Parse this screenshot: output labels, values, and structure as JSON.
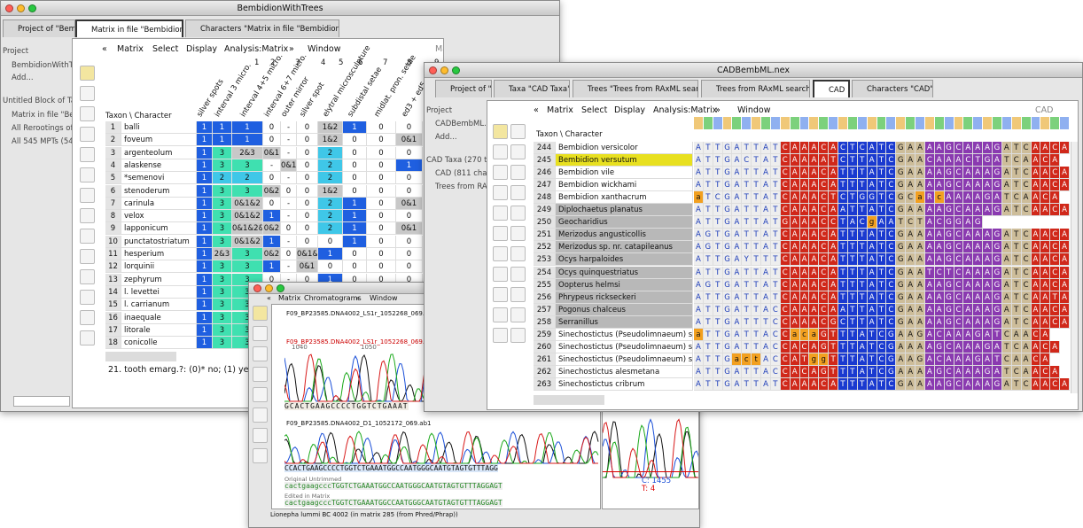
{
  "window1": {
    "title": "BembidionWithTrees",
    "tabs": [
      "Project of \"Bemb",
      "Matrix in file \"Bembidion\"",
      "Characters \"Matrix in file \"Bembidion\""
    ],
    "sidebar": [
      "Project",
      "BembidionWithTr",
      "Add...",
      "Untitled Block of Tax",
      "Matrix in file \"Be",
      "All Rerootings of",
      "All 545 MPTs (54"
    ],
    "menu": [
      "«",
      "Matrix",
      "Select",
      "Display",
      "Analysis:Matrix",
      "»",
      "Window"
    ],
    "menu_title": "Matrix in file \"Bembidion\"",
    "column_numbers": [
      "1",
      "2",
      "3",
      "4",
      "5",
      "6",
      "7",
      "8",
      "9"
    ],
    "character_names": [
      "silver spots",
      "interval 3 micro.",
      "interval 4+5 micro.",
      "interval 6+7 micro.",
      "outer mirror",
      "silver spot",
      "elytral microsculpture",
      "subdistal setae",
      "midlat. pron. setae",
      "ed3 + ed5"
    ],
    "corner": "Taxon \\ Character",
    "rows": [
      {
        "num": "1",
        "taxon": "balli",
        "cells": [
          "1",
          "1",
          "1",
          "0",
          "-",
          "0",
          "1&2",
          "1",
          "0",
          "0"
        ]
      },
      {
        "num": "2",
        "taxon": "foveum",
        "cells": [
          "1",
          "1",
          "1",
          "0",
          "-",
          "0",
          "1&2",
          "0",
          "0",
          "0&1"
        ]
      },
      {
        "num": "3",
        "taxon": "argenteolum",
        "cells": [
          "1",
          "3",
          "2&3",
          "0&1",
          "-",
          "0",
          "2",
          "0",
          "0",
          "0"
        ]
      },
      {
        "num": "4",
        "taxon": "alaskense",
        "cells": [
          "1",
          "3",
          "3",
          "-",
          "0&1",
          "0",
          "2",
          "0",
          "0",
          "1"
        ]
      },
      {
        "num": "5",
        "taxon": "*semenovi",
        "cells": [
          "1",
          "2",
          "2",
          "0",
          "-",
          "0",
          "2",
          "0",
          "0",
          "0"
        ]
      },
      {
        "num": "6",
        "taxon": "stenoderum",
        "cells": [
          "1",
          "3",
          "3",
          "0&2",
          "0",
          "0",
          "1&2",
          "0",
          "0",
          "0"
        ]
      },
      {
        "num": "7",
        "taxon": "carinula",
        "cells": [
          "1",
          "3",
          "0&1&2",
          "0",
          "-",
          "0",
          "2",
          "1",
          "0",
          "0&1"
        ]
      },
      {
        "num": "8",
        "taxon": "velox",
        "cells": [
          "1",
          "3",
          "0&1&2",
          "1",
          "-",
          "0",
          "2",
          "1",
          "0",
          "0"
        ]
      },
      {
        "num": "9",
        "taxon": "lapponicum",
        "cells": [
          "1",
          "3",
          "0&1&2&3",
          "0&2",
          "0",
          "0",
          "2",
          "1",
          "0",
          "0&1"
        ]
      },
      {
        "num": "10",
        "taxon": "punctatostriatum",
        "cells": [
          "1",
          "3",
          "0&1&2",
          "1",
          "-",
          "0",
          "0",
          "1",
          "0",
          "0"
        ]
      },
      {
        "num": "11",
        "taxon": "hesperium",
        "cells": [
          "1",
          "2&3",
          "3",
          "0&2",
          "0",
          "0&1&2",
          "1",
          "0",
          "0",
          "0"
        ]
      },
      {
        "num": "12",
        "taxon": "lorquinii",
        "cells": [
          "1",
          "3",
          "3",
          "1",
          "-",
          "0&1",
          "0",
          "0",
          "0",
          "0"
        ]
      },
      {
        "num": "13",
        "taxon": "zephyrum",
        "cells": [
          "1",
          "3",
          "3",
          "0",
          "-",
          "0",
          "1",
          "0",
          "0",
          "0"
        ]
      },
      {
        "num": "14",
        "taxon": "l. levettei",
        "cells": [
          "1",
          "3",
          "3"
        ]
      },
      {
        "num": "15",
        "taxon": "l. carrianum",
        "cells": [
          "1",
          "3",
          "3"
        ]
      },
      {
        "num": "16",
        "taxon": "inaequale",
        "cells": [
          "1",
          "3",
          "3"
        ]
      },
      {
        "num": "17",
        "taxon": "litorale",
        "cells": [
          "1",
          "3",
          "3"
        ]
      },
      {
        "num": "18",
        "taxon": "conicolle",
        "cells": [
          "1",
          "3",
          "3"
        ]
      }
    ],
    "footer": "21. tooth emarg.?: (0)* no; (1) yes;"
  },
  "window2": {
    "title": "Chromatograms",
    "menu": [
      "«",
      "Matrix",
      "Chromatograms",
      "»",
      "Window"
    ],
    "file1": "F09_BP23585.DNA4002_LS1r_1052268_069.ab1",
    "ruler": [
      "1040",
      "1050",
      "1060"
    ],
    "file2": "F09_BP23585.DNA4002_LS1r_1052268_069.ab1",
    "seq1": "GCACTGAAGCCCCTGGTCTGAAAT",
    "file3": "F09_BP23585.DNA4002_D1_1052172_069.ab1",
    "seq2": "CCACTGAAGCCCCTGGTCTGAAATGGCCAATGGGCAATGTAGTGTTTAGG",
    "original_label": "Original Untrimmed",
    "original_seq": "cactgaagcccTGGTCTGAAATGGCCAATGGGCAATGTAGTGTTTAGGAGT",
    "edited_label": "Edited in Matrix",
    "edited_seq": "cactgaagcccTGGTCTGAAATGGCCAATGGGCAATGTAGTGTTTAGGAGT",
    "peak_c": "C: 1455",
    "peak_t": "T: 4",
    "status": "Lionepha lummi BC 4002 (in matrix 285 (from Phred/Phrap))"
  },
  "window3": {
    "title": "CADBembML.nex",
    "tabs": [
      "Project of \"CA",
      "Taxa \"CAD Taxa\"",
      "Trees \"Trees from RAxML search\"",
      "Trees from RAxML search",
      "CAD",
      "Characters \"CAD\""
    ],
    "sidebar": [
      "Project",
      "CADBembML.ne",
      "Add...",
      "CAD Taxa (270 tax",
      "CAD (811 chara",
      "Trees from RAx"
    ],
    "menu": [
      "«",
      "Matrix",
      "Select",
      "Display",
      "Analysis:Matrix",
      "»",
      "Window"
    ],
    "menu_title": "CAD",
    "corner": "Taxon \\ Character",
    "rows": [
      {
        "num": "244",
        "taxon": "Bembidion versicolor",
        "seq": "ATTGATTATCAAACACTCATCGAAAAGCAAAGATCAACA"
      },
      {
        "num": "245",
        "taxon": "Bembidion versutum",
        "seq": "ATTGACTATCAAAATCTTATCGAACAAACTGATCAACA"
      },
      {
        "num": "246",
        "taxon": "Bembidion vile",
        "seq": "ATTGATTATCAAACATTTATCGAAAAGCAAAGATCAACA"
      },
      {
        "num": "247",
        "taxon": "Bembidion wickhami",
        "seq": "ATTGATTATCAAACATTTATCGAAAAGCAAAGATCAACA"
      },
      {
        "num": "248",
        "taxon": "Bembidion xanthacrum",
        "seq": "aTCGATTATCAAACTCTGGTCGCaRcAAAAGATCAACA"
      },
      {
        "num": "249",
        "taxon": "Diplochaetus planatus",
        "seq": "ATTGATTATCAAACAATTATCGAAAAGCAAAGATCAACA"
      },
      {
        "num": "250",
        "taxon": "Geocharidius",
        "seq": "ATTGATTATGAAACCTACgAATCTACGGAG"
      },
      {
        "num": "251",
        "taxon": "Merizodus angusticollis",
        "seq": "AGTGATTATCAAACATTTATCGAAAAGCAAAGATCAACA"
      },
      {
        "num": "252",
        "taxon": "Merizodus sp. nr. catapileanus",
        "seq": "AGTGATTATCAAACATTTATCGAAAAGCAAAGATCAACA"
      },
      {
        "num": "253",
        "taxon": "Ocys harpaloides",
        "seq": "ATTGAYTTTCAAACATTTATCGAAAAGCAAAGATCAACA"
      },
      {
        "num": "254",
        "taxon": "Ocys quinquestriatus",
        "seq": "ATTGATTATCAAACATTTATCGAATCTCAAAGATCAACA"
      },
      {
        "num": "255",
        "taxon": "Oopterus helmsi",
        "seq": "AGTGATTATCAAACATTTATCGAAAAGCAAAGATCAACA"
      },
      {
        "num": "256",
        "taxon": "Phrypeus rickseckeri",
        "seq": "ATTGATTATCAAACATTTATCGAAAAGCAAAGATCAATA"
      },
      {
        "num": "257",
        "taxon": "Pogonus chalceus",
        "seq": "ATTGATTACCAAACAATTATCGAAAAGCAAAGATCAACA"
      },
      {
        "num": "258",
        "taxon": "Serranillus",
        "seq": "ATTGATTTCCAAACGCTTATCGAAAAGCAAAGATCAACA"
      },
      {
        "num": "259",
        "taxon": "Sinechostictus (Pseudolimnaeum) sp. 2",
        "seq": "aTTGATTACCacaGTTTATCGAAGACAAAGATCAACA"
      },
      {
        "num": "260",
        "taxon": "Sinechostictus (Pseudolimnaeum) sp. 3",
        "seq": "ATTGATTACCACAGTTTATCGAAAAGCAAAGATCAACA"
      },
      {
        "num": "261",
        "taxon": "Sinechostictus (Pseudolimnaeum) sp. 4",
        "seq": "ATTGactACCATggTTTATCGAAGACAAAGATCAACA"
      },
      {
        "num": "262",
        "taxon": "Sinechostictus alesmetana",
        "seq": "ATTGATTACCACAGTTTATCGAAAAGCAAAGATCAACA"
      },
      {
        "num": "263",
        "taxon": "Sinechostictus cribrum",
        "seq": "ATTGATTATCAAACATTTATCGAAAAGCAAAGATCAACA"
      }
    ]
  }
}
